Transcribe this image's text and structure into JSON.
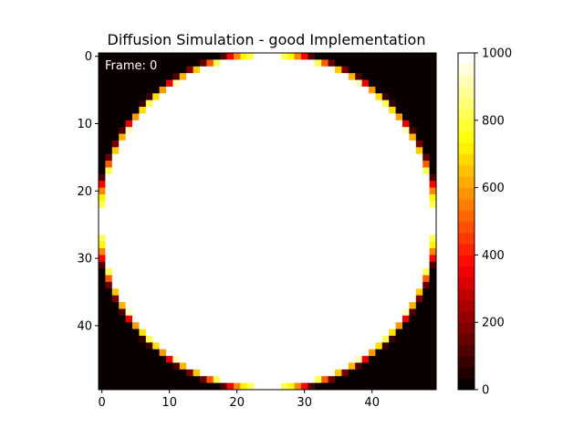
{
  "chart_data": {
    "type": "heatmap",
    "title": "Diffusion Simulation - good Implementation",
    "annotation": "Frame: 0",
    "grid_size": [
      50,
      50
    ],
    "xlim": [
      -0.5,
      49.5
    ],
    "ylim": [
      49.5,
      -0.5
    ],
    "x_ticks": [
      0,
      10,
      20,
      30,
      40
    ],
    "y_ticks": [
      0,
      10,
      20,
      30,
      40
    ],
    "field": {
      "shape": "disk",
      "center": [
        24.5,
        24.5
      ],
      "radius": 25.0,
      "inside_value": 1000,
      "outside_value": 0,
      "edge": "partial cell coverage, value = 1000 × covered fraction"
    },
    "colorbar": {
      "colormap": "hot",
      "vmin": 0,
      "vmax": 1000,
      "ticks": [
        0,
        200,
        400,
        600,
        800,
        1000
      ],
      "levels": 30
    },
    "colors": {
      "annotation_color": "#ffffff"
    }
  }
}
